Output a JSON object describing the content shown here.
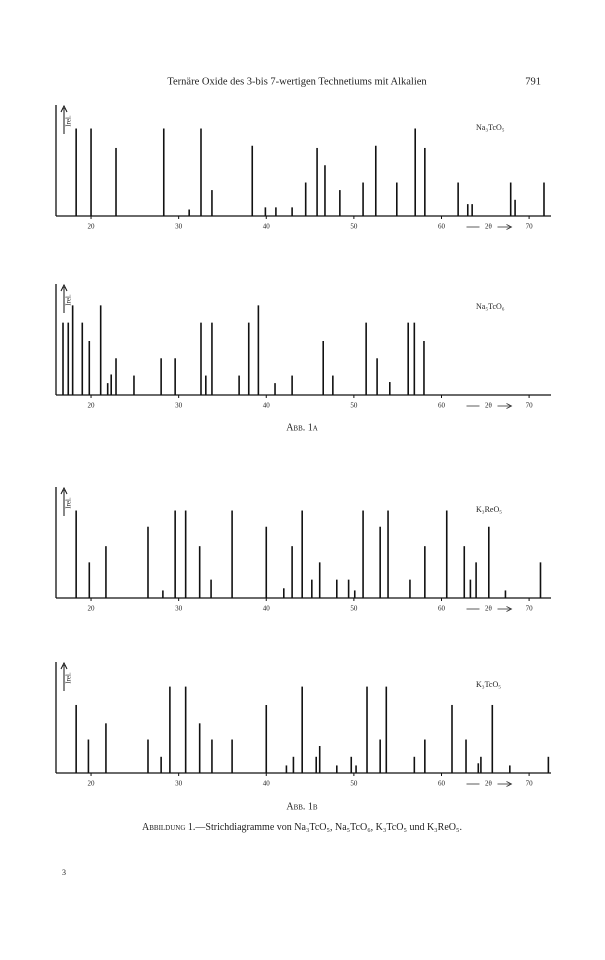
{
  "header": {
    "title": "Ternäre Oxide des 3-bis 7-wertigen Technetiums mit Alkalien",
    "page_number": "791"
  },
  "chart_data": [
    {
      "type": "stem",
      "label": "Na₃TcO₅",
      "x_label": "2θ",
      "y_label": "Irel.",
      "color": "#111111",
      "xlim": [
        16,
        72.5
      ],
      "ylim": [
        0,
        100
      ],
      "xticks": [
        20,
        30,
        40,
        50,
        60,
        70
      ],
      "x": [
        18.3,
        20.0,
        22.85,
        28.3,
        31.2,
        32.55,
        33.8,
        38.4,
        39.9,
        41.1,
        42.95,
        44.5,
        45.8,
        46.7,
        48.4,
        51.05,
        52.5,
        54.9,
        57.0,
        58.1,
        61.9,
        63.0,
        63.5,
        67.9,
        68.4,
        71.7
      ],
      "values": [
        81,
        81,
        63,
        81,
        6,
        81,
        24,
        65,
        8,
        8,
        8,
        31,
        63,
        47,
        24,
        31,
        65,
        31,
        81,
        63,
        31,
        11,
        11,
        31,
        15,
        31
      ]
    },
    {
      "type": "stem",
      "label": "Na₅TcO₆",
      "x_label": "2θ",
      "y_label": "Irel.",
      "color": "#111111",
      "xlim": [
        16,
        72.5
      ],
      "ylim": [
        0,
        100
      ],
      "xticks": [
        20,
        30,
        40,
        50,
        60,
        70
      ],
      "x": [
        16.8,
        17.4,
        17.9,
        19.0,
        19.8,
        21.1,
        21.9,
        22.3,
        22.85,
        24.9,
        28.0,
        29.6,
        32.55,
        33.1,
        33.8,
        36.9,
        38.0,
        39.1,
        41.0,
        42.95,
        46.5,
        47.6,
        51.4,
        52.65,
        54.1,
        56.2,
        56.9,
        58.0
      ],
      "values": [
        67,
        67,
        83,
        67,
        50,
        83,
        11,
        19,
        34,
        18,
        34,
        34,
        67,
        18,
        67,
        18,
        67,
        83,
        11,
        18,
        50,
        18,
        67,
        34,
        12,
        67,
        67,
        50
      ]
    },
    {
      "type": "stem",
      "label": "K₃ReO₅",
      "x_label": "2θ",
      "y_label": "Irel.",
      "color": "#111111",
      "xlim": [
        16,
        72.5
      ],
      "ylim": [
        0,
        100
      ],
      "xticks": [
        20,
        30,
        40,
        50,
        60,
        70
      ],
      "x": [
        18.3,
        19.8,
        21.7,
        26.5,
        28.2,
        29.6,
        30.8,
        32.4,
        33.7,
        36.1,
        40.0,
        42.0,
        42.95,
        44.1,
        45.2,
        46.1,
        48.05,
        49.4,
        50.1,
        51.05,
        53.0,
        53.9,
        56.4,
        58.1,
        60.6,
        62.6,
        63.3,
        63.95,
        65.4,
        67.3,
        71.3
      ],
      "values": [
        81,
        33,
        48,
        66,
        7,
        81,
        81,
        48,
        17,
        81,
        66,
        9,
        48,
        81,
        17,
        33,
        17,
        17,
        7,
        81,
        66,
        81,
        17,
        48,
        81,
        48,
        17,
        33,
        66,
        7,
        33
      ]
    },
    {
      "type": "stem",
      "label": "K₃TcO₅",
      "x_label": "2θ",
      "y_label": "Irel.",
      "color": "#111111",
      "xlim": [
        16,
        72.5
      ],
      "ylim": [
        0,
        100
      ],
      "xticks": [
        20,
        30,
        40,
        50,
        60,
        70
      ],
      "x": [
        18.3,
        19.7,
        21.7,
        26.5,
        28.0,
        29.0,
        30.8,
        32.4,
        33.8,
        36.1,
        40.0,
        42.3,
        43.1,
        44.1,
        45.7,
        46.1,
        48.05,
        49.7,
        50.25,
        51.5,
        53.0,
        53.7,
        56.9,
        58.1,
        61.2,
        62.8,
        64.2,
        64.5,
        65.8,
        67.8,
        72.2
      ],
      "values": [
        63,
        31,
        46,
        31,
        15,
        80,
        80,
        46,
        31,
        31,
        63,
        7,
        15,
        80,
        15,
        25,
        7,
        15,
        7,
        80,
        31,
        80,
        15,
        31,
        63,
        31,
        9,
        15,
        63,
        7,
        15
      ]
    }
  ],
  "figure_labels": [
    "Abb. 1a",
    "Abb. 1b"
  ],
  "caption_label": "Abbildung 1.",
  "caption_text": "—Strichdiagramme von Na₃TcO₅, Na₅TcO₆, K₃TcO₅ und K₃ReO₅.",
  "footer": "3"
}
